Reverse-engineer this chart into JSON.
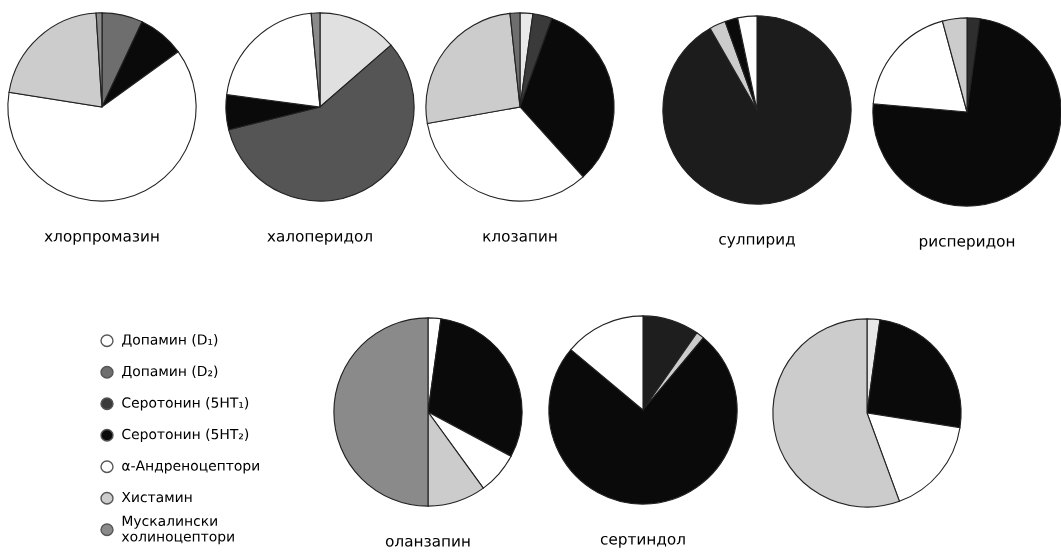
{
  "chart_data": [
    {
      "type": "pie",
      "title": "хлорпромазин",
      "categories": [
        null,
        null,
        null,
        null,
        null
      ],
      "values": [
        7,
        8,
        62.5,
        21.5,
        1
      ],
      "colors": [
        "#6e6e6e",
        "#0a0a0a",
        "#ffffff",
        "#cccccc",
        "#8a8a8a"
      ]
    },
    {
      "type": "pie",
      "title": "халоперидол",
      "categories": [
        null,
        null,
        null,
        null,
        null
      ],
      "values": [
        13.6,
        57.5,
        6,
        21.4,
        1.5
      ],
      "colors": [
        "#e0e0e0",
        "#555555",
        "#0a0a0a",
        "#ffffff",
        "#8a8a8a"
      ]
    },
    {
      "type": "pie",
      "title": "клозапин",
      "categories": [
        null,
        null,
        null,
        null,
        null,
        null
      ],
      "values": [
        2.2,
        3.3,
        32.8,
        33.9,
        26.1,
        1.7
      ],
      "colors": [
        "#e8e8e8",
        "#3a3a3a",
        "#0a0a0a",
        "#ffffff",
        "#cccccc",
        "#6e6e6e"
      ]
    },
    {
      "type": "pie",
      "title": "сулпирид",
      "categories": [
        null,
        null,
        null,
        null
      ],
      "values": [
        91.7,
        2.8,
        2.2,
        3.3
      ],
      "colors": [
        "#1c1c1c",
        "#cccccc",
        "#0a0a0a",
        "#ffffff"
      ]
    },
    {
      "type": "pie",
      "title": "рисперидон",
      "categories": [
        null,
        null,
        null,
        null
      ],
      "values": [
        2.2,
        74.2,
        19.4,
        4.2
      ],
      "colors": [
        "#2e2e2e",
        "#0a0a0a",
        "#ffffff",
        "#cccccc"
      ]
    },
    {
      "type": "other",
      "categories": [
        "Допамин (D₁)",
        "Допамин (D₂)",
        "Серотонин (5HT₁)",
        "Серотонин (5HT₂)",
        "α-Андреноцептори",
        "Хистамин",
        "Мускалински\nхолиноцептори"
      ],
      "colors": [
        "#ffffff",
        "#6e6e6e",
        "#3a3a3a",
        "#0a0a0a",
        "#ffffff",
        "#cccccc",
        "#8a8a8a"
      ]
    },
    {
      "type": "pie",
      "title": "оланзапин",
      "categories": [
        null,
        null,
        null,
        null,
        null
      ],
      "values": [
        2.2,
        30.6,
        7.2,
        10,
        50
      ],
      "colors": [
        "#ffffff",
        "#0a0a0a",
        "#ffffff",
        "#cccccc",
        "#8a8a8a"
      ]
    },
    {
      "type": "pie",
      "title": "сертиндол",
      "categories": [
        null,
        null,
        null,
        null
      ],
      "values": [
        9.7,
        1.4,
        75,
        13.9
      ],
      "colors": [
        "#1e1e1e",
        "#cccccc",
        "#0a0a0a",
        "#ffffff"
      ]
    },
    {
      "type": "pie",
      "categories": [
        null,
        null,
        null,
        null
      ],
      "values": [
        2.2,
        25.3,
        16.9,
        55.6
      ],
      "colors": [
        "#e8e8e8",
        "#0a0a0a",
        "#ffffff",
        "#cccccc"
      ]
    }
  ]
}
